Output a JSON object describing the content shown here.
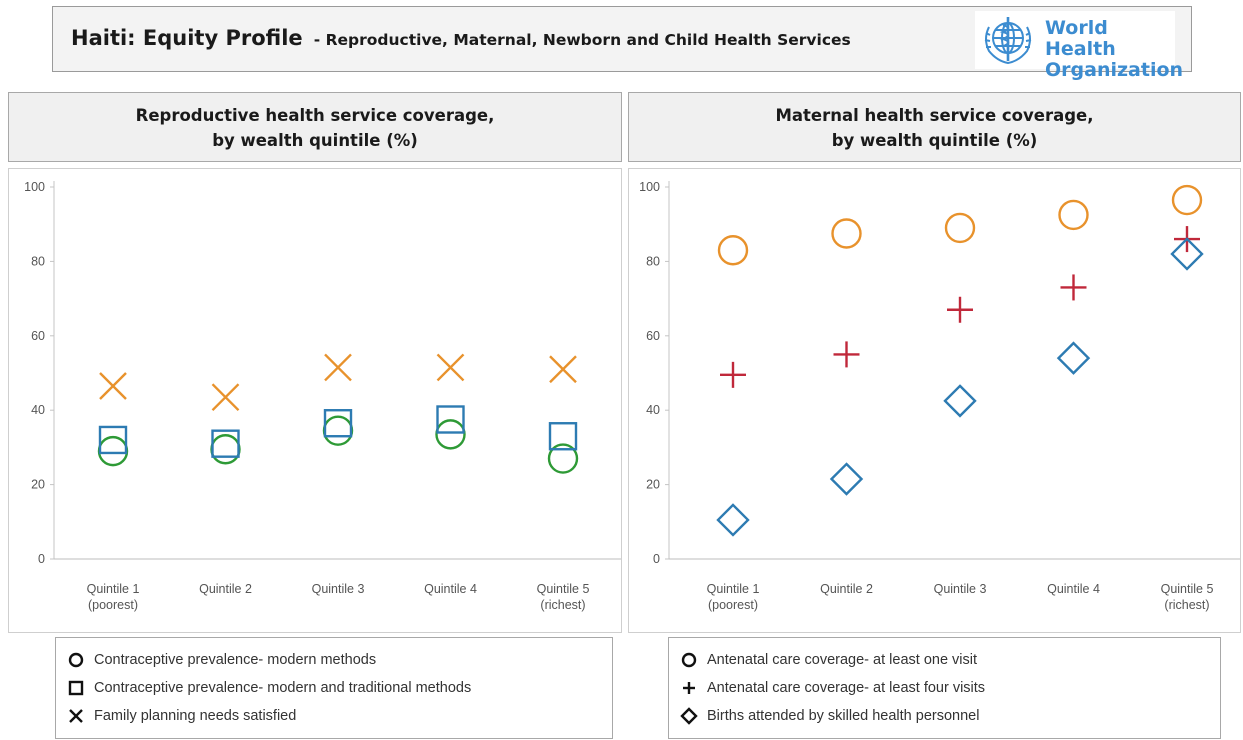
{
  "header": {
    "country": "Haiti: Equity Profile",
    "subtitle": "- Reproductive, Maternal, Newborn and Child Health Services",
    "logo_line1": "World Health",
    "logo_line2": "Organization",
    "logo_color": "#3c8cd0"
  },
  "colors": {
    "circle": "#e8922c",
    "cross": "#c0283a",
    "diamond": "#2d7bb2",
    "x": "#e8922c",
    "square": "#2d7bb2",
    "green_circle": "#2e9a36"
  },
  "chart_data": [
    {
      "type": "scatter",
      "title_line1": "Reproductive health service coverage,",
      "title_line2": "by wealth quintile (%)",
      "categories": [
        [
          "Quintile 1",
          "(poorest)"
        ],
        [
          "Quintile 2"
        ],
        [
          "Quintile 3"
        ],
        [
          "Quintile 4"
        ],
        [
          "Quintile 5",
          "(richest)"
        ]
      ],
      "yticks": [
        0,
        20,
        40,
        60,
        80,
        100
      ],
      "ylim": [
        0,
        100
      ],
      "grid": false,
      "legend_position": "bottom",
      "series": [
        {
          "name": "Contraceptive prevalence- modern methods",
          "marker": "circle",
          "color": "#2e9a36",
          "values": [
            29,
            29.5,
            34.5,
            33.5,
            27
          ]
        },
        {
          "name": "Contraceptive prevalence- modern and traditional methods",
          "marker": "square",
          "color": "#2d7bb2",
          "values": [
            32,
            31,
            36.5,
            37.5,
            33
          ]
        },
        {
          "name": "Family planning needs satisfied",
          "marker": "x",
          "color": "#e8922c",
          "values": [
            46.5,
            43.5,
            51.5,
            51.5,
            51
          ]
        }
      ]
    },
    {
      "type": "scatter",
      "title_line1": "Maternal health service coverage,",
      "title_line2": "by wealth quintile (%)",
      "categories": [
        [
          "Quintile 1",
          "(poorest)"
        ],
        [
          "Quintile 2"
        ],
        [
          "Quintile 3"
        ],
        [
          "Quintile 4"
        ],
        [
          "Quintile 5",
          "(richest)"
        ]
      ],
      "yticks": [
        0,
        20,
        40,
        60,
        80,
        100
      ],
      "ylim": [
        0,
        100
      ],
      "grid": false,
      "legend_position": "bottom",
      "series": [
        {
          "name": "Antenatal care coverage- at least one visit",
          "marker": "circle",
          "color": "#e8922c",
          "values": [
            83,
            87.5,
            89,
            92.5,
            96.5
          ]
        },
        {
          "name": "Antenatal care coverage- at least four visits",
          "marker": "cross",
          "color": "#c0283a",
          "values": [
            49.5,
            55,
            67,
            73,
            86
          ]
        },
        {
          "name": "Births attended by skilled health personnel",
          "marker": "diamond",
          "color": "#2d7bb2",
          "values": [
            10.5,
            21.5,
            42.5,
            54,
            82
          ]
        }
      ]
    }
  ]
}
